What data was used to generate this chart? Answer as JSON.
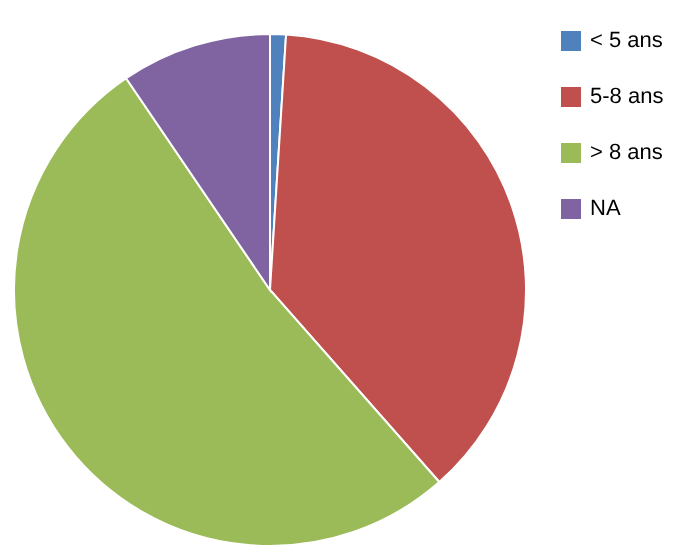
{
  "chart_data": {
    "type": "pie",
    "categories": [
      "< 5 ans",
      "5-8 ans",
      "> 8 ans",
      "NA"
    ],
    "values": [
      1,
      37.5,
      52,
      9.5
    ],
    "colors": [
      "#4f81bd",
      "#c0504d",
      "#9bbb59",
      "#8064a2"
    ],
    "legend": "right"
  }
}
